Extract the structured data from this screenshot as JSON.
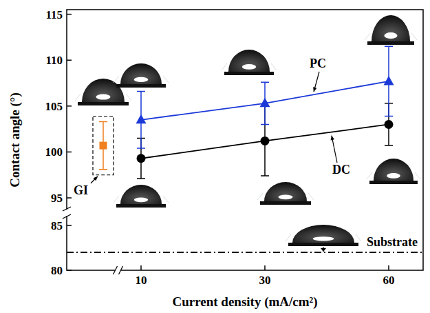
{
  "chart_data": [
    {
      "type": "line",
      "y_label": "Contact angle (°)",
      "categories": [
        null,
        "10",
        "30",
        "60"
      ],
      "ylim": [
        93.8,
        115.5
      ],
      "yticks": [
        95,
        100,
        105,
        110,
        115
      ],
      "tick_labels": "y",
      "grid": false,
      "series": [
        {
          "name": "GI",
          "color": "#f07f1e",
          "marker": "square",
          "line_style": "none",
          "values": [
            100.7,
            null,
            null,
            null
          ],
          "errors": [
            2.6,
            null,
            null,
            null
          ]
        },
        {
          "name": "PC",
          "color": "#1c39d8",
          "marker": "triangle",
          "line_style": "solid",
          "values": [
            null,
            103.5,
            105.3,
            107.7
          ],
          "errors": [
            null,
            3.1,
            2.3,
            3.8
          ]
        },
        {
          "name": "DC",
          "color": "#000000",
          "marker": "circle",
          "line_style": "solid",
          "values": [
            null,
            99.3,
            101.2,
            103.0
          ],
          "errors": [
            null,
            2.2,
            3.8,
            2.3
          ]
        }
      ]
    },
    {
      "type": "line",
      "x_label": "Current density (mA/cm²)",
      "categories": [
        null,
        "10",
        "30",
        "60"
      ],
      "ylim": [
        80,
        86
      ],
      "yticks": [
        80,
        85
      ],
      "grid": false,
      "series": [
        {
          "name": "Substrate",
          "type": "reference",
          "color": "#000000",
          "line_style": "dashdot",
          "value": 82
        }
      ]
    }
  ]
}
